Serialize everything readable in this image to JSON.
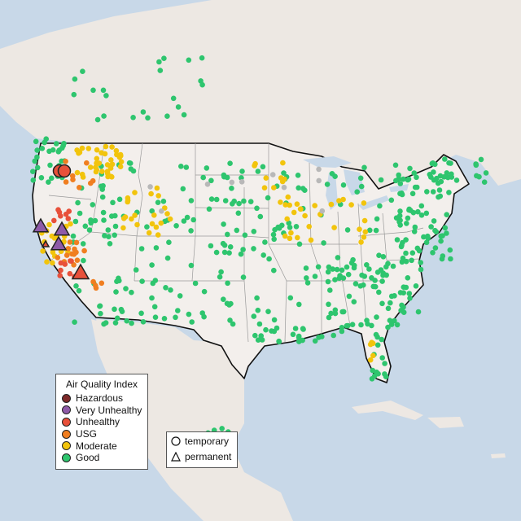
{
  "legend": {
    "title": "Air Quality Index",
    "levels": [
      {
        "label": "Hazardous",
        "color": "#7e2a2a"
      },
      {
        "label": "Very Unhealthy",
        "color": "#8e5aa8"
      },
      {
        "label": "Unhealthy",
        "color": "#e8503a"
      },
      {
        "label": "USG",
        "color": "#f07e20"
      },
      {
        "label": "Moderate",
        "color": "#f2c40c"
      },
      {
        "label": "Good",
        "color": "#2ec56e"
      }
    ]
  },
  "type_legend": {
    "temporary": "temporary",
    "permanent": "permanent"
  },
  "colors": {
    "water": "#c8d8e8",
    "land": "#ede8e3",
    "usa": "#f3efec",
    "no_data": "#b8b8b8"
  }
}
